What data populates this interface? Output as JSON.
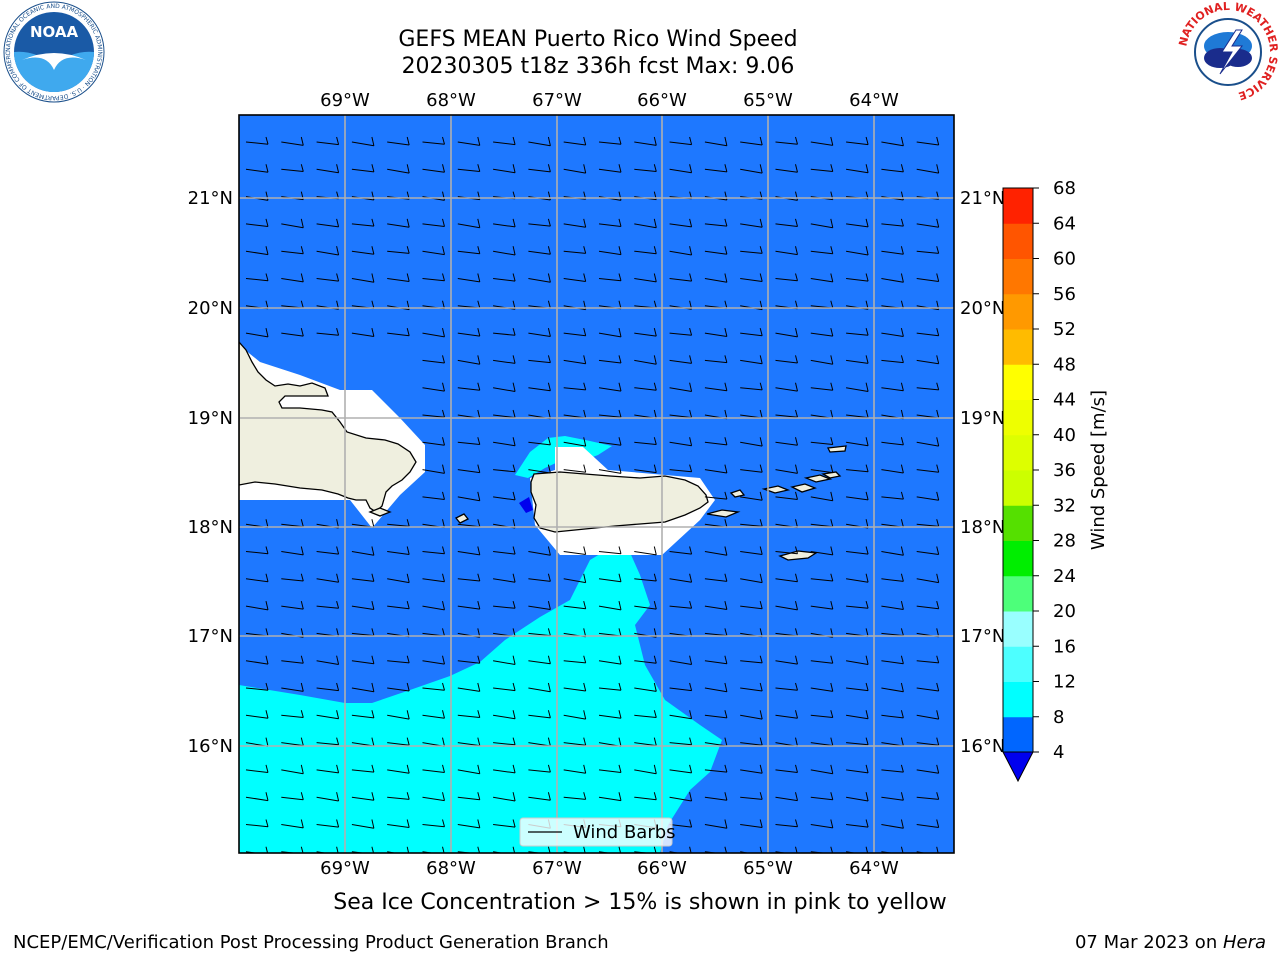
{
  "title": {
    "line1": "GEFS MEAN Puerto Rico Wind Speed",
    "line2": "20230305 t18z 336h fcst   Max: 9.06"
  },
  "logos": {
    "noaa_text": "NOAA",
    "noaa_ring": "NATIONAL OCEANIC AND ATMOSPHERIC ADMINISTRATION · U.S. DEPARTMENT OF COMMERCE ·",
    "nws_ring": "NATIONAL WEATHER SERVICE"
  },
  "axes": {
    "lon_labels": [
      "69°W",
      "68°W",
      "67°W",
      "66°W",
      "65°W",
      "64°W"
    ],
    "lat_labels": [
      "21°N",
      "20°N",
      "19°N",
      "18°N",
      "17°N",
      "16°N"
    ]
  },
  "legend": {
    "label": "Wind Barbs"
  },
  "colorbar": {
    "label": "Wind Speed [m/s]",
    "ticks": [
      "68",
      "64",
      "60",
      "56",
      "52",
      "48",
      "44",
      "40",
      "36",
      "32",
      "28",
      "24",
      "20",
      "16",
      "12",
      "8",
      "4"
    ],
    "levels": [
      {
        "lo": 4,
        "hi": 8,
        "color": "#0066ff"
      },
      {
        "lo": 8,
        "hi": 12,
        "color": "#00ffff"
      },
      {
        "lo": 12,
        "hi": 16,
        "color": "#4dffff"
      },
      {
        "lo": 16,
        "hi": 20,
        "color": "#99ffff"
      },
      {
        "lo": 20,
        "hi": 24,
        "color": "#4dff7a"
      },
      {
        "lo": 24,
        "hi": 28,
        "color": "#00ee00"
      },
      {
        "lo": 28,
        "hi": 32,
        "color": "#55e000"
      },
      {
        "lo": 32,
        "hi": 36,
        "color": "#ccff00"
      },
      {
        "lo": 36,
        "hi": 40,
        "color": "#ddff00"
      },
      {
        "lo": 40,
        "hi": 44,
        "color": "#eeff00"
      },
      {
        "lo": 44,
        "hi": 48,
        "color": "#ffff00"
      },
      {
        "lo": 48,
        "hi": 52,
        "color": "#ffbb00"
      },
      {
        "lo": 52,
        "hi": 56,
        "color": "#ff9900"
      },
      {
        "lo": 56,
        "hi": 60,
        "color": "#ff7700"
      },
      {
        "lo": 60,
        "hi": 64,
        "color": "#ff5500"
      },
      {
        "lo": 64,
        "hi": 68,
        "color": "#ff2200"
      }
    ],
    "under_color": "#0000ee"
  },
  "map": {
    "ocean_color": "#1e78ff",
    "higher_wind_color": "#00ffff",
    "land_color": "#efefdf",
    "masked_color": "#ffffff"
  },
  "subcaption": "Sea Ice Concentration > 15% is shown in pink to yellow",
  "footer": {
    "left": "NCEP/EMC/Verification Post Processing Product Generation Branch",
    "date": "07 Mar 2023 on ",
    "host": "Hera"
  }
}
